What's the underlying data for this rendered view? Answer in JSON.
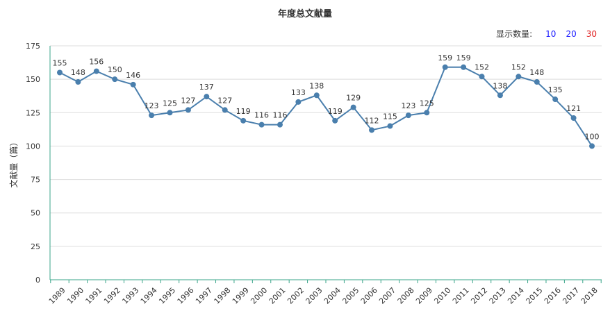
{
  "chart_title": "年度总文献量",
  "display_count": {
    "label": "显示数量:",
    "options": [
      {
        "text": "10",
        "color": "#1a1aff"
      },
      {
        "text": "20",
        "color": "#1a1aff"
      },
      {
        "text": "30",
        "color": "#e02020"
      }
    ]
  },
  "colors": {
    "line": "#4a7fad",
    "axis": "#3aa58a",
    "grid": "#dddddd"
  },
  "chart_data": {
    "type": "line",
    "title": "年度总文献量",
    "xlabel": "",
    "ylabel": "文献量（篇）",
    "ylim": [
      0,
      175
    ],
    "yticks": [
      0,
      25,
      50,
      75,
      100,
      125,
      150,
      175
    ],
    "grid": true,
    "x": [
      "1989",
      "1990",
      "1991",
      "1992",
      "1993",
      "1994",
      "1995",
      "1996",
      "1997",
      "1998",
      "1999",
      "2000",
      "2001",
      "2002",
      "2003",
      "2004",
      "2005",
      "2006",
      "2007",
      "2008",
      "2009",
      "2010",
      "2011",
      "2012",
      "2013",
      "2014",
      "2015",
      "2016",
      "2017",
      "2018"
    ],
    "series": [
      {
        "values": [
          155,
          148,
          156,
          150,
          146,
          123,
          125,
          127,
          137,
          127,
          119,
          116,
          116,
          133,
          138,
          119,
          129,
          112,
          115,
          123,
          125,
          159,
          159,
          152,
          138,
          152,
          148,
          135,
          121,
          100
        ]
      }
    ]
  }
}
